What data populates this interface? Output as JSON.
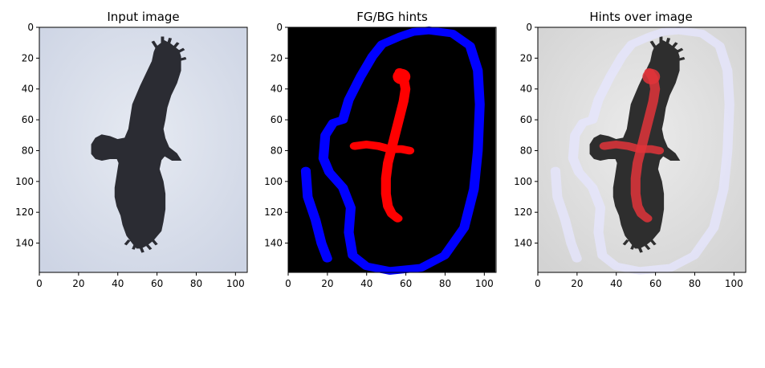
{
  "chart_data": [
    {
      "type": "image",
      "title": "Input image",
      "xlim": [
        0,
        106
      ],
      "ylim": [
        159,
        0
      ],
      "xticks": [
        0,
        20,
        40,
        60,
        80,
        100
      ],
      "yticks": [
        0,
        20,
        40,
        60,
        80,
        100,
        120,
        140
      ],
      "content": "photo of a soaring black vulture against a pale blue-grey sky",
      "colors": {
        "sky": "#d6dce8",
        "bird": "#2b2c33"
      }
    },
    {
      "type": "image",
      "title": "FG/BG hints",
      "xlim": [
        0,
        106
      ],
      "ylim": [
        159,
        0
      ],
      "xticks": [
        0,
        20,
        40,
        60,
        80,
        100
      ],
      "yticks": [
        0,
        20,
        40,
        60,
        80,
        100,
        120,
        140
      ],
      "content": "black background with a blue background-scribble loop around the bird and a red foreground-scribble along the body and wings",
      "colors": {
        "background": "#000000",
        "bg_hint": "#0000ff",
        "fg_hint": "#ff0000"
      },
      "fg_stroke": [
        [
          57,
          29
        ],
        [
          59,
          33
        ],
        [
          60,
          40
        ],
        [
          59,
          48
        ],
        [
          57,
          58
        ],
        [
          55,
          68
        ],
        [
          53,
          78
        ],
        [
          51,
          88
        ],
        [
          50,
          98
        ],
        [
          50,
          108
        ],
        [
          51,
          116
        ],
        [
          53,
          121
        ],
        [
          56,
          124
        ]
      ],
      "fg_cross_stroke": [
        [
          34,
          77
        ],
        [
          40,
          76
        ],
        [
          46,
          77
        ],
        [
          52,
          79
        ],
        [
          58,
          79
        ],
        [
          62,
          80
        ]
      ],
      "bg_loop": [
        [
          72,
          2
        ],
        [
          84,
          4
        ],
        [
          93,
          12
        ],
        [
          97,
          28
        ],
        [
          98,
          50
        ],
        [
          97,
          80
        ],
        [
          95,
          105
        ],
        [
          90,
          130
        ],
        [
          80,
          148
        ],
        [
          68,
          156
        ],
        [
          52,
          158
        ],
        [
          40,
          155
        ],
        [
          33,
          148
        ],
        [
          31,
          133
        ],
        [
          32,
          117
        ],
        [
          28,
          104
        ],
        [
          21,
          94
        ],
        [
          18,
          85
        ],
        [
          19,
          70
        ],
        [
          23,
          62
        ],
        [
          28,
          60
        ],
        [
          31,
          47
        ],
        [
          37,
          32
        ],
        [
          43,
          19
        ],
        [
          48,
          11
        ],
        [
          57,
          6
        ],
        [
          64,
          3
        ],
        [
          72,
          2
        ]
      ],
      "bg_stray": [
        [
          9,
          93
        ],
        [
          10,
          110
        ],
        [
          14,
          125
        ],
        [
          17,
          140
        ],
        [
          20,
          150
        ]
      ]
    },
    {
      "type": "image",
      "title": "Hints over image",
      "xlim": [
        0,
        106
      ],
      "ylim": [
        159,
        0
      ],
      "xticks": [
        0,
        20,
        40,
        60,
        80,
        100
      ],
      "yticks": [
        0,
        20,
        40,
        60,
        80,
        100,
        120,
        140
      ],
      "content": "greyscale bird photo with translucent red foreground hints and pale lavender background hints overlaid",
      "colors": {
        "background": "#dcdcdc",
        "bird": "#2e2e2e",
        "fg_hint": "#e0343a",
        "bg_hint": "#e6e6ff"
      }
    }
  ]
}
